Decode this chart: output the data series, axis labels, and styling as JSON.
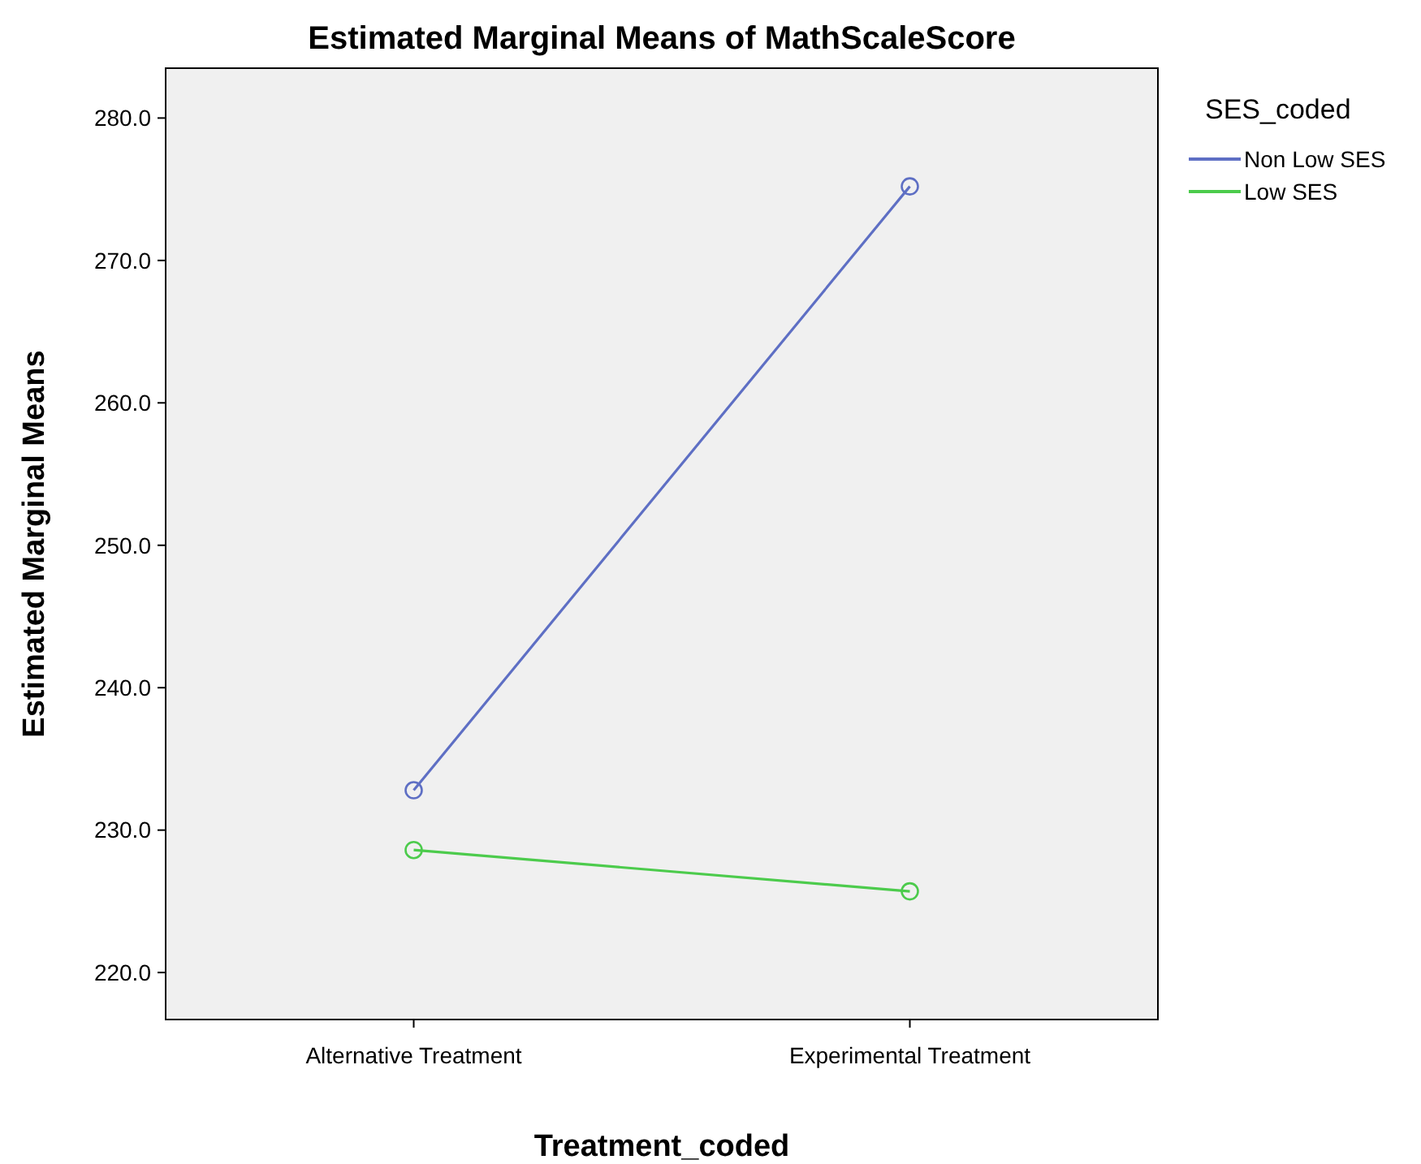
{
  "chart_data": {
    "type": "line",
    "title": "Estimated Marginal Means of MathScaleScore",
    "xlabel": "Treatment_coded",
    "ylabel": "Estimated Marginal Means",
    "legend_title": "SES_coded",
    "categories": [
      "Alternative Treatment",
      "Experimental Treatment"
    ],
    "series": [
      {
        "name": "Non Low SES",
        "color": "#5e6fc4",
        "values": [
          232.8,
          275.2
        ]
      },
      {
        "name": "Low SES",
        "color": "#4ccb4c",
        "values": [
          228.6,
          225.7
        ]
      }
    ],
    "ylim": [
      216.7,
      283.5
    ],
    "yticks": [
      {
        "value": 220,
        "label": "220.0"
      },
      {
        "value": 230,
        "label": "230.0"
      },
      {
        "value": 240,
        "label": "240.0"
      },
      {
        "value": 250,
        "label": "250.0"
      },
      {
        "value": 260,
        "label": "260.0"
      },
      {
        "value": 270,
        "label": "270.0"
      },
      {
        "value": 280,
        "label": "280.0"
      }
    ],
    "marker": "circle",
    "line_style": "solid",
    "legend": "top right",
    "grid": false
  }
}
